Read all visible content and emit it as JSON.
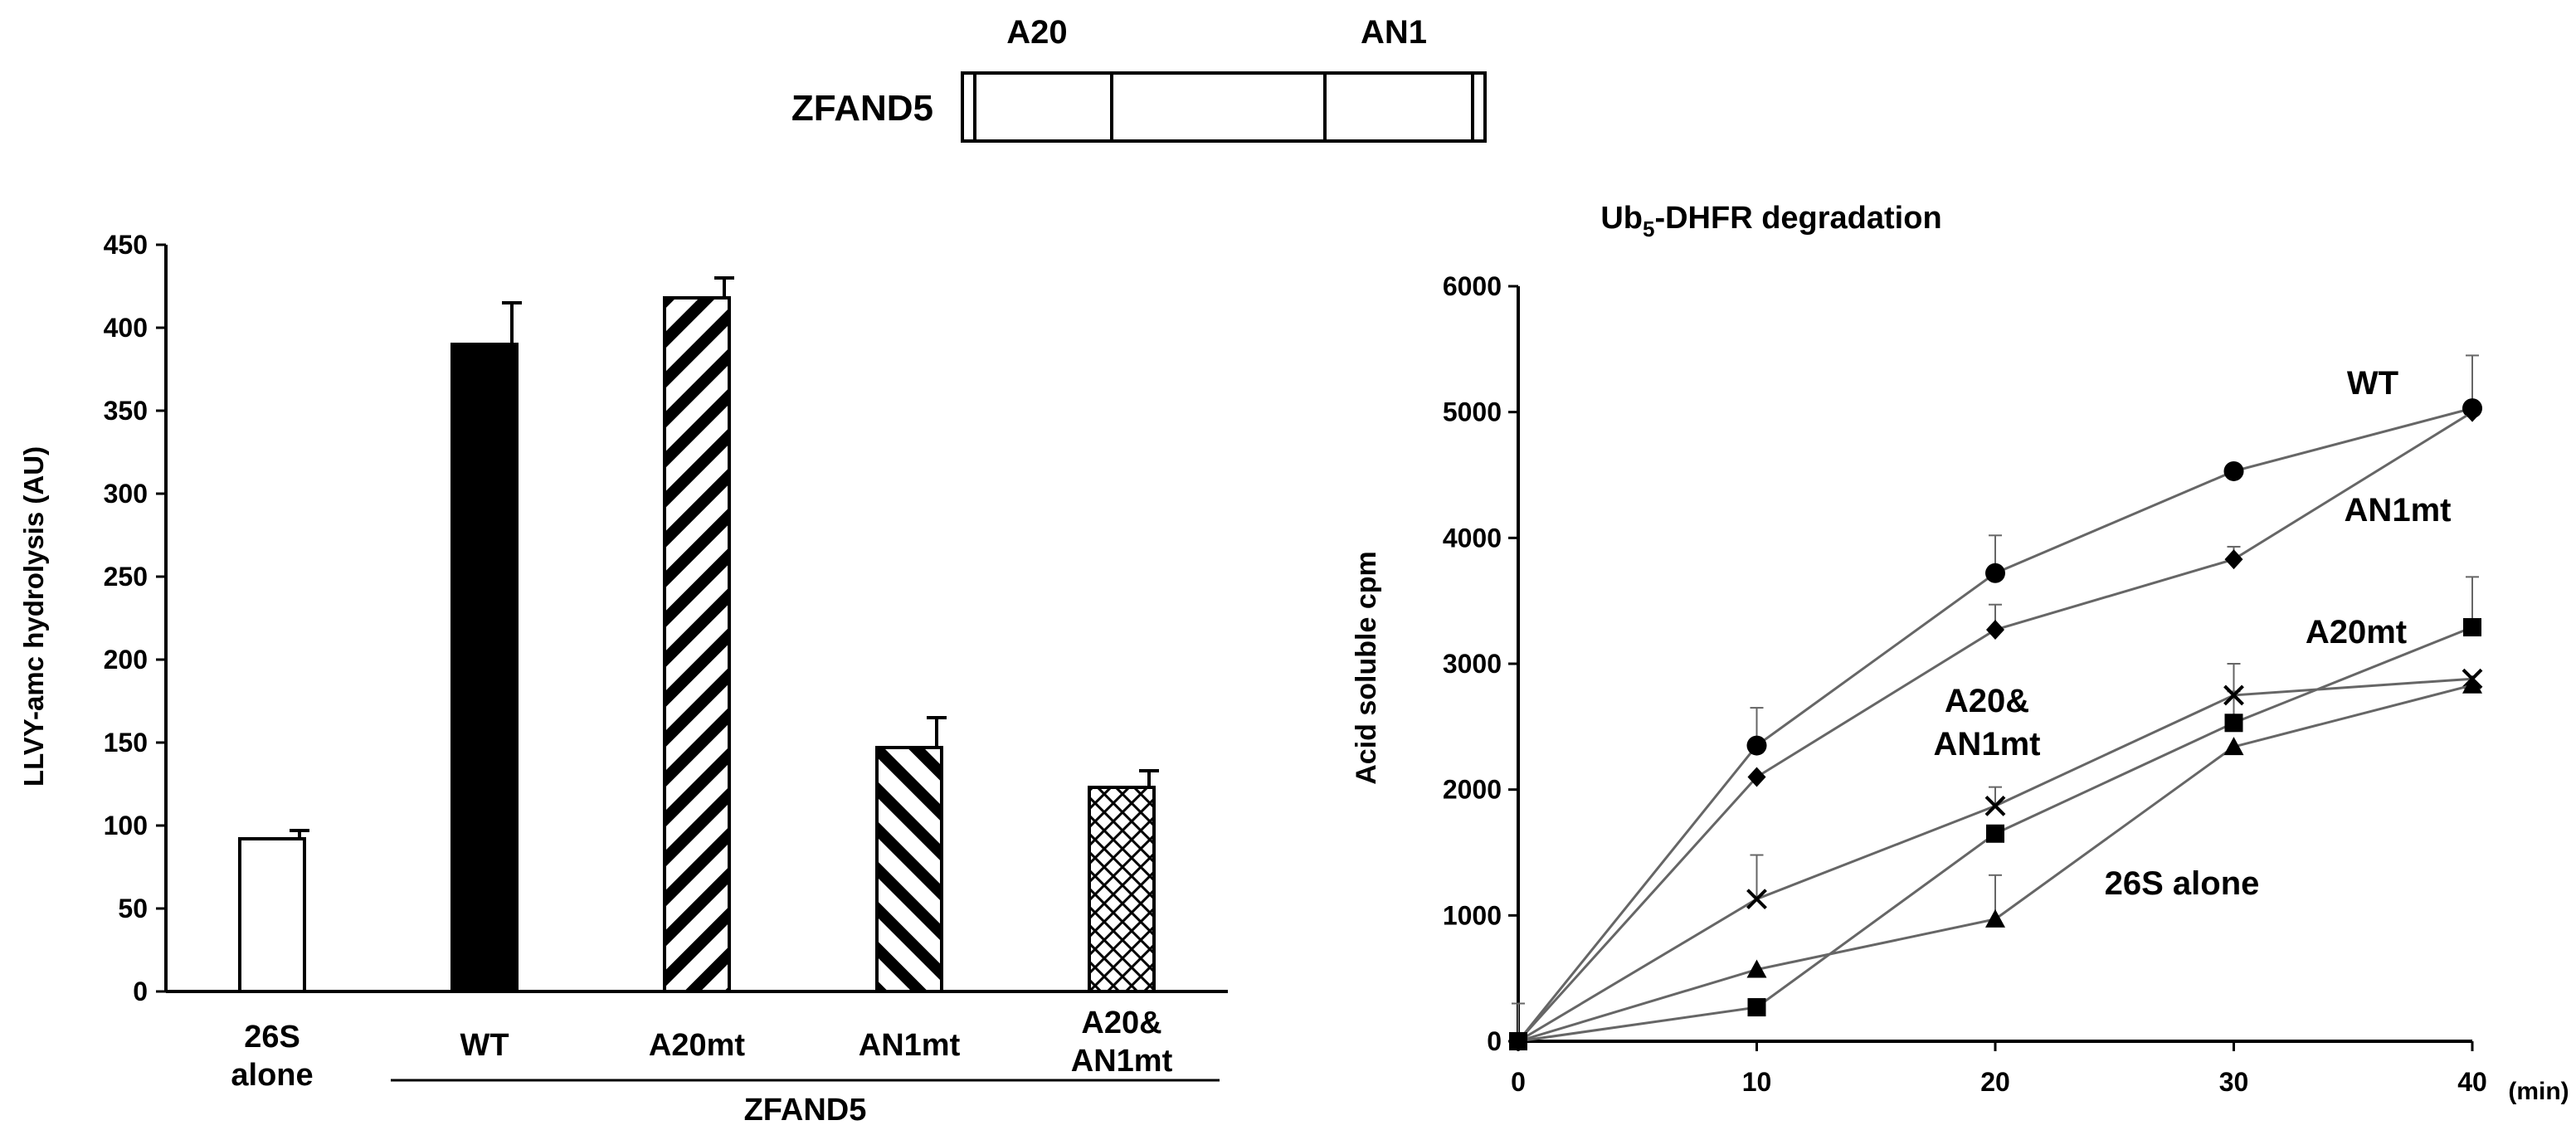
{
  "domain_map": {
    "protein_label": "ZFAND5",
    "domain_left_label": "A20",
    "domain_right_label": "AN1"
  },
  "chart_data": [
    {
      "type": "bar",
      "title": "",
      "ylabel": "LLVY-amc hydrolysis (AU)",
      "xlabel": "",
      "ylim": [
        0,
        450
      ],
      "yticks": [
        0,
        50,
        100,
        150,
        200,
        250,
        300,
        350,
        400,
        450
      ],
      "categories": [
        "26S alone",
        "WT",
        "A20mt",
        "AN1mt",
        "A20& AN1mt"
      ],
      "category_lines": [
        [
          "26S",
          "alone"
        ],
        [
          "WT"
        ],
        [
          "A20mt"
        ],
        [
          "AN1mt"
        ],
        [
          "A20&",
          "AN1mt"
        ]
      ],
      "values": [
        92,
        390,
        418,
        147,
        123
      ],
      "errors": [
        5,
        25,
        12,
        18,
        10
      ],
      "fills": [
        "white",
        "solid-black",
        "diagonal-stripes",
        "back-diagonal-stripes",
        "crosshatch"
      ],
      "group_label": "ZFAND5",
      "grid": false
    },
    {
      "type": "line",
      "title": "Ub5-DHFR degradation",
      "title_main": "Ub",
      "title_sub": "5",
      "title_rest": "-DHFR degradation",
      "xlabel": "(min)",
      "ylabel": "Acid soluble cpm",
      "x": [
        0,
        10,
        20,
        30,
        40
      ],
      "xlim": [
        0,
        40
      ],
      "ylim": [
        0,
        6000
      ],
      "xticks": [
        0,
        10,
        20,
        30,
        40
      ],
      "yticks": [
        0,
        1000,
        2000,
        3000,
        4000,
        5000,
        6000
      ],
      "ytick_labels": [
        "0",
        "1000",
        "2000",
        "3000",
        "4000",
        "5000",
        "6000"
      ],
      "grid": false,
      "series": [
        {
          "name": "WT",
          "marker": "circle",
          "values": [
            0,
            2350,
            3720,
            4530,
            5030
          ],
          "errors": [
            0,
            300,
            300,
            0,
            420
          ]
        },
        {
          "name": "AN1mt",
          "marker": "diamond",
          "values": [
            0,
            2100,
            3270,
            3830,
            5000
          ],
          "errors": [
            0,
            0,
            200,
            100,
            0
          ]
        },
        {
          "name": "A20mt",
          "marker": "square",
          "values": [
            0,
            270,
            1650,
            2530,
            3290
          ],
          "errors": [
            0,
            0,
            0,
            250,
            400
          ]
        },
        {
          "name": "A20& AN1mt",
          "marker": "x",
          "values": [
            0,
            1130,
            1870,
            2750,
            2880
          ],
          "errors": [
            0,
            350,
            150,
            250,
            0
          ]
        },
        {
          "name": "26S alone",
          "marker": "triangle",
          "values": [
            0,
            570,
            970,
            2340,
            2830
          ],
          "errors": [
            300,
            0,
            350,
            0,
            0
          ]
        }
      ],
      "annotations": [
        "WT",
        "AN1mt",
        "A20mt",
        "A20&",
        "AN1mt",
        "26S alone"
      ]
    }
  ]
}
